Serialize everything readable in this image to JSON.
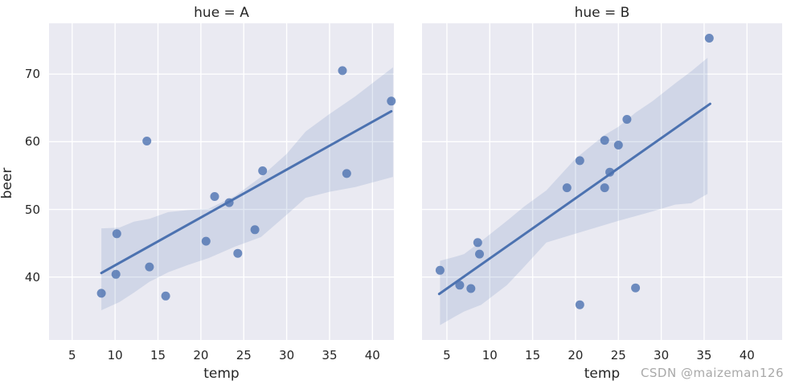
{
  "figure": {
    "watermark": "CSDN @maizeman126",
    "watermark_color": "#a9a9a9",
    "background": "#ffffff"
  },
  "style": {
    "panel_background": "#eaeaf2",
    "grid_color": "#ffffff",
    "accent": "#4c72b0",
    "band_opacity": 0.16,
    "point_opacity": 0.8,
    "text_color": "#262626"
  },
  "axes": {
    "xlabel": "temp",
    "ylabel": "beer",
    "x_ticks": [
      5,
      10,
      15,
      20,
      25,
      30,
      35,
      40
    ],
    "y_ticks": [
      40,
      50,
      60,
      70
    ],
    "ylim": [
      30.7,
      77.5
    ],
    "grid": "on",
    "legend": "none"
  },
  "chart_data": [
    {
      "type": "scatter",
      "title": "hue = A",
      "facet": "A",
      "xlabel": "temp",
      "ylabel": "beer",
      "xlim": [
        2.3,
        42.5
      ],
      "points": [
        [
          8.4,
          37.6
        ],
        [
          10.1,
          40.4
        ],
        [
          10.2,
          46.4
        ],
        [
          13.7,
          60.1
        ],
        [
          14.0,
          41.5
        ],
        [
          15.9,
          37.2
        ],
        [
          20.6,
          45.3
        ],
        [
          21.6,
          51.9
        ],
        [
          23.3,
          51.0
        ],
        [
          24.3,
          43.5
        ],
        [
          26.3,
          47.0
        ],
        [
          27.2,
          55.7
        ],
        [
          36.5,
          70.5
        ],
        [
          37.0,
          55.3
        ],
        [
          42.2,
          66.0
        ]
      ],
      "regression_line": [
        [
          8.4,
          40.6
        ],
        [
          42.2,
          64.5
        ]
      ],
      "confidence_band": {
        "x": [
          8.4,
          10.5,
          12.2,
          14.0,
          16.2,
          18.5,
          20.9,
          24.0,
          27.0,
          30.0,
          32.2,
          35.0,
          38.0,
          42.4
        ],
        "upper": [
          47.2,
          47.3,
          48.2,
          48.6,
          49.6,
          49.9,
          50.1,
          52.0,
          54.8,
          58.2,
          61.5,
          64.1,
          66.7,
          71.0
        ],
        "lower": [
          35.1,
          36.3,
          37.7,
          39.3,
          40.7,
          41.8,
          42.8,
          44.5,
          45.9,
          49.2,
          51.7,
          52.6,
          53.3,
          54.8
        ]
      }
    },
    {
      "type": "scatter",
      "title": "hue = B",
      "facet": "B",
      "xlabel": "temp",
      "ylabel": "beer",
      "xlim": [
        2.1,
        44.1
      ],
      "points": [
        [
          4.2,
          41.0
        ],
        [
          6.5,
          38.8
        ],
        [
          7.8,
          38.3
        ],
        [
          8.6,
          45.1
        ],
        [
          8.8,
          43.4
        ],
        [
          19.0,
          53.2
        ],
        [
          20.5,
          57.2
        ],
        [
          20.5,
          35.9
        ],
        [
          23.4,
          53.2
        ],
        [
          23.4,
          60.2
        ],
        [
          24.0,
          55.5
        ],
        [
          25.0,
          59.5
        ],
        [
          26.0,
          63.3
        ],
        [
          27.0,
          38.4
        ],
        [
          35.6,
          75.3
        ]
      ],
      "regression_line": [
        [
          4.1,
          37.5
        ],
        [
          35.7,
          65.6
        ]
      ],
      "confidence_band": {
        "x": [
          4.2,
          6.0,
          7.0,
          9.0,
          12.0,
          14.0,
          16.6,
          20.0,
          23.4,
          25.0,
          27.0,
          29.0,
          31.6,
          33.5,
          35.4
        ],
        "upper": [
          42.4,
          43.0,
          43.4,
          45.3,
          48.3,
          50.4,
          52.8,
          57.5,
          61.0,
          62.2,
          64.3,
          66.0,
          68.6,
          70.4,
          72.4
        ],
        "lower": [
          32.9,
          34.2,
          34.9,
          35.9,
          38.8,
          41.5,
          45.1,
          46.4,
          47.7,
          48.3,
          49.0,
          49.7,
          50.7,
          50.9,
          52.3
        ]
      }
    }
  ]
}
